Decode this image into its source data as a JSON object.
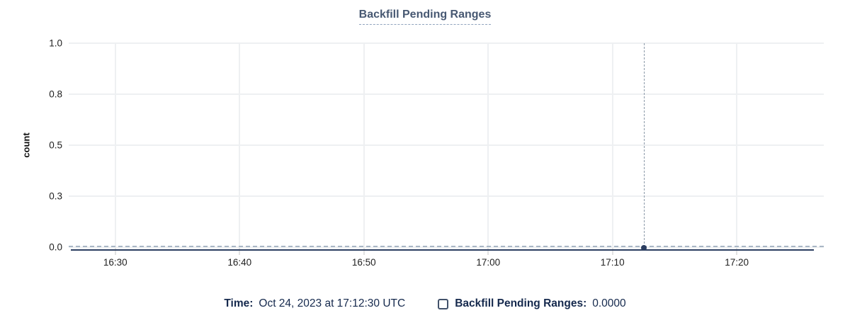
{
  "chart_data": {
    "type": "line",
    "title": "Backfill Pending Ranges",
    "xlabel": "",
    "ylabel": "count",
    "x_axis": {
      "range": [
        "16:26:15",
        "17:27:00"
      ],
      "ticks": [
        "16:30",
        "16:40",
        "16:50",
        "17:00",
        "17:10",
        "17:20"
      ]
    },
    "y_axis": {
      "range": [
        0,
        1
      ],
      "tick_values": [
        0,
        0.25,
        0.5,
        0.75,
        1
      ],
      "tick_labels": [
        "0.0",
        "0.3",
        "0.5",
        "0.8",
        "1.0"
      ]
    },
    "grid": true,
    "legend_position": "bottom",
    "series": [
      {
        "name": "Backfill Pending Ranges",
        "constant_value": 0,
        "color": "#2c3e61"
      }
    ],
    "hover": {
      "time": "17:12:30",
      "value": "0.0000"
    }
  },
  "legend": {
    "time_label": "Time:",
    "time_value": "Oct 24, 2023 at 17:12:30 UTC",
    "series_label": "Backfill Pending Ranges:",
    "series_value": "0.0000",
    "checkbox_checked": false
  },
  "colors": {
    "title": "#475872",
    "title_underline": "#90a3bd",
    "grid": "#eef0f2",
    "tick": "#e2e2e2",
    "axis_text": "#212121",
    "series": "#2c3e61",
    "zero_dash": "#a9b7c6",
    "crosshair": "#8b99a8",
    "legend_text": "#15294d",
    "checkbox": "#42526b"
  }
}
